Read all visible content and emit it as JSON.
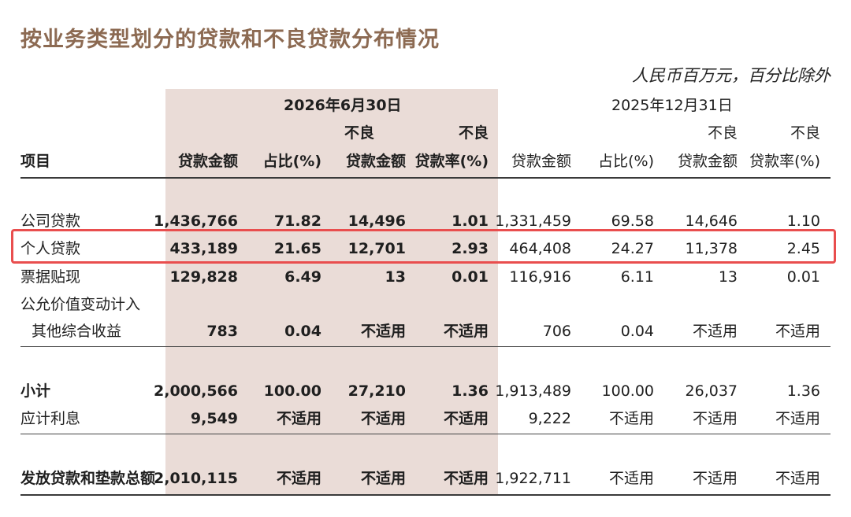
{
  "title": "按业务类型划分的贷款和不良贷款分布情况",
  "unit_note": "人民币百万元，百分比除外",
  "periods": {
    "current": "2026年6月30日",
    "prior": "2025年12月31日"
  },
  "headers": {
    "item": "项目",
    "loan_amount": "贷款金额",
    "share": "占比(%)",
    "npl_line1": "不良",
    "npl_amount_line2": "贷款金额",
    "npl_rate_line2": "贷款率(%)"
  },
  "rows": [
    {
      "label": "公司贷款",
      "c_amt": "1,436,766",
      "c_pct": "71.82",
      "c_npl": "14,496",
      "c_rate": "1.01",
      "p_amt": "1,331,459",
      "p_pct": "69.58",
      "p_npl": "14,646",
      "p_rate": "1.10"
    },
    {
      "label": "个人贷款",
      "c_amt": "433,189",
      "c_pct": "21.65",
      "c_npl": "12,701",
      "c_rate": "2.93",
      "p_amt": "464,408",
      "p_pct": "24.27",
      "p_npl": "11,378",
      "p_rate": "2.45"
    },
    {
      "label": "票据贴现",
      "c_amt": "129,828",
      "c_pct": "6.49",
      "c_npl": "13",
      "c_rate": "0.01",
      "p_amt": "116,916",
      "p_pct": "6.11",
      "p_npl": "13",
      "p_rate": "0.01"
    },
    {
      "label_line1": "公允价值变动计入",
      "label": "其他综合收益",
      "c_amt": "783",
      "c_pct": "0.04",
      "c_npl": "不适用",
      "c_rate": "不适用",
      "p_amt": "706",
      "p_pct": "0.04",
      "p_npl": "不适用",
      "p_rate": "不适用"
    },
    {
      "label": "小计",
      "c_amt": "2,000,566",
      "c_pct": "100.00",
      "c_npl": "27,210",
      "c_rate": "1.36",
      "p_amt": "1,913,489",
      "p_pct": "100.00",
      "p_npl": "26,037",
      "p_rate": "1.36"
    },
    {
      "label": "应计利息",
      "c_amt": "9,549",
      "c_pct": "不适用",
      "c_npl": "不适用",
      "c_rate": "不适用",
      "p_amt": "9,222",
      "p_pct": "不适用",
      "p_npl": "不适用",
      "p_rate": "不适用"
    },
    {
      "label": "发放贷款和垫款总额",
      "c_amt": "2,010,115",
      "c_pct": "不适用",
      "c_npl": "不适用",
      "c_rate": "不适用",
      "p_amt": "1,922,711",
      "p_pct": "不适用",
      "p_npl": "不适用",
      "p_rate": "不适用"
    }
  ],
  "colors": {
    "title": "#8c6a52",
    "current_period_shade": "#eadcd7",
    "highlight_box": "#e94e4e"
  }
}
